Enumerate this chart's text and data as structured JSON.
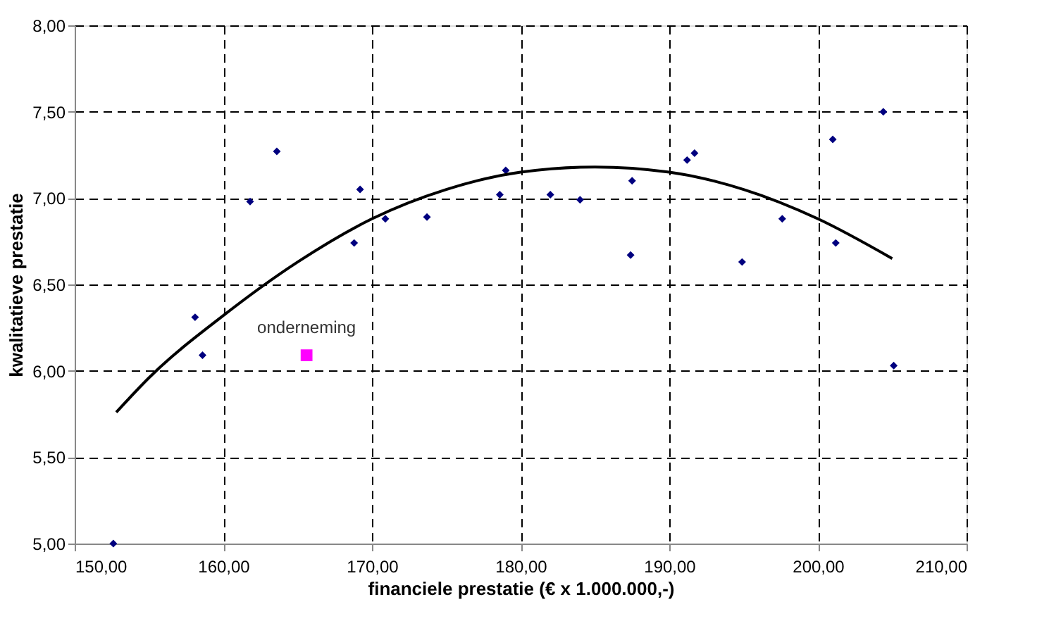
{
  "chart_data": {
    "type": "scatter",
    "xlabel": "financiele prestatie (€ x 1.000.000,-)",
    "ylabel": "kwalitatieve prestatie",
    "xlim": [
      150,
      210
    ],
    "ylim": [
      5,
      8
    ],
    "xticks": [
      {
        "value": 150,
        "label": "150,00"
      },
      {
        "value": 160,
        "label": "160,00"
      },
      {
        "value": 170,
        "label": "170,00"
      },
      {
        "value": 180,
        "label": "180,00"
      },
      {
        "value": 190,
        "label": "190,00"
      },
      {
        "value": 200,
        "label": "200,00"
      },
      {
        "value": 210,
        "label": "210,00"
      }
    ],
    "yticks": [
      {
        "value": 5,
        "label": "5,00"
      },
      {
        "value": 5.5,
        "label": "5,50"
      },
      {
        "value": 6,
        "label": "6,00"
      },
      {
        "value": 6.5,
        "label": "6,50"
      },
      {
        "value": 7,
        "label": "7,00"
      },
      {
        "value": 7.5,
        "label": "7,50"
      },
      {
        "value": 8,
        "label": "8,00"
      }
    ],
    "grid": true,
    "legend": false,
    "marker": "diamond",
    "series": [
      {
        "color": "#00007f",
        "x": [
          152.6,
          158.1,
          158.6,
          161.8,
          163.6,
          168.8,
          169.2,
          170.9,
          173.7,
          178.6,
          179.0,
          182.0,
          184.0,
          187.5,
          187.4,
          191.2,
          191.7,
          194.9,
          197.6,
          201.0,
          201.2,
          204.4,
          205.1
        ],
        "values": [
          5.0,
          6.31,
          6.09,
          6.98,
          7.27,
          6.74,
          7.05,
          6.88,
          6.89,
          7.02,
          7.16,
          7.02,
          6.99,
          7.1,
          6.67,
          7.22,
          7.26,
          6.63,
          6.88,
          7.34,
          6.74,
          7.5,
          6.03
        ]
      },
      {
        "type": "line",
        "color": "#000000",
        "marker": "none",
        "line_style": "solid",
        "x": [
          152.8,
          155,
          160,
          165,
          170,
          175,
          180,
          185,
          190,
          195,
          200,
          205
        ],
        "values": [
          5.76,
          5.96,
          6.32,
          6.63,
          6.88,
          7.05,
          7.15,
          7.18,
          7.15,
          7.05,
          6.88,
          6.65
        ]
      },
      {
        "name": "onderneming",
        "color": "#ff00ff",
        "marker": "square",
        "x": [
          165.6
        ],
        "values": [
          6.09
        ]
      }
    ]
  }
}
